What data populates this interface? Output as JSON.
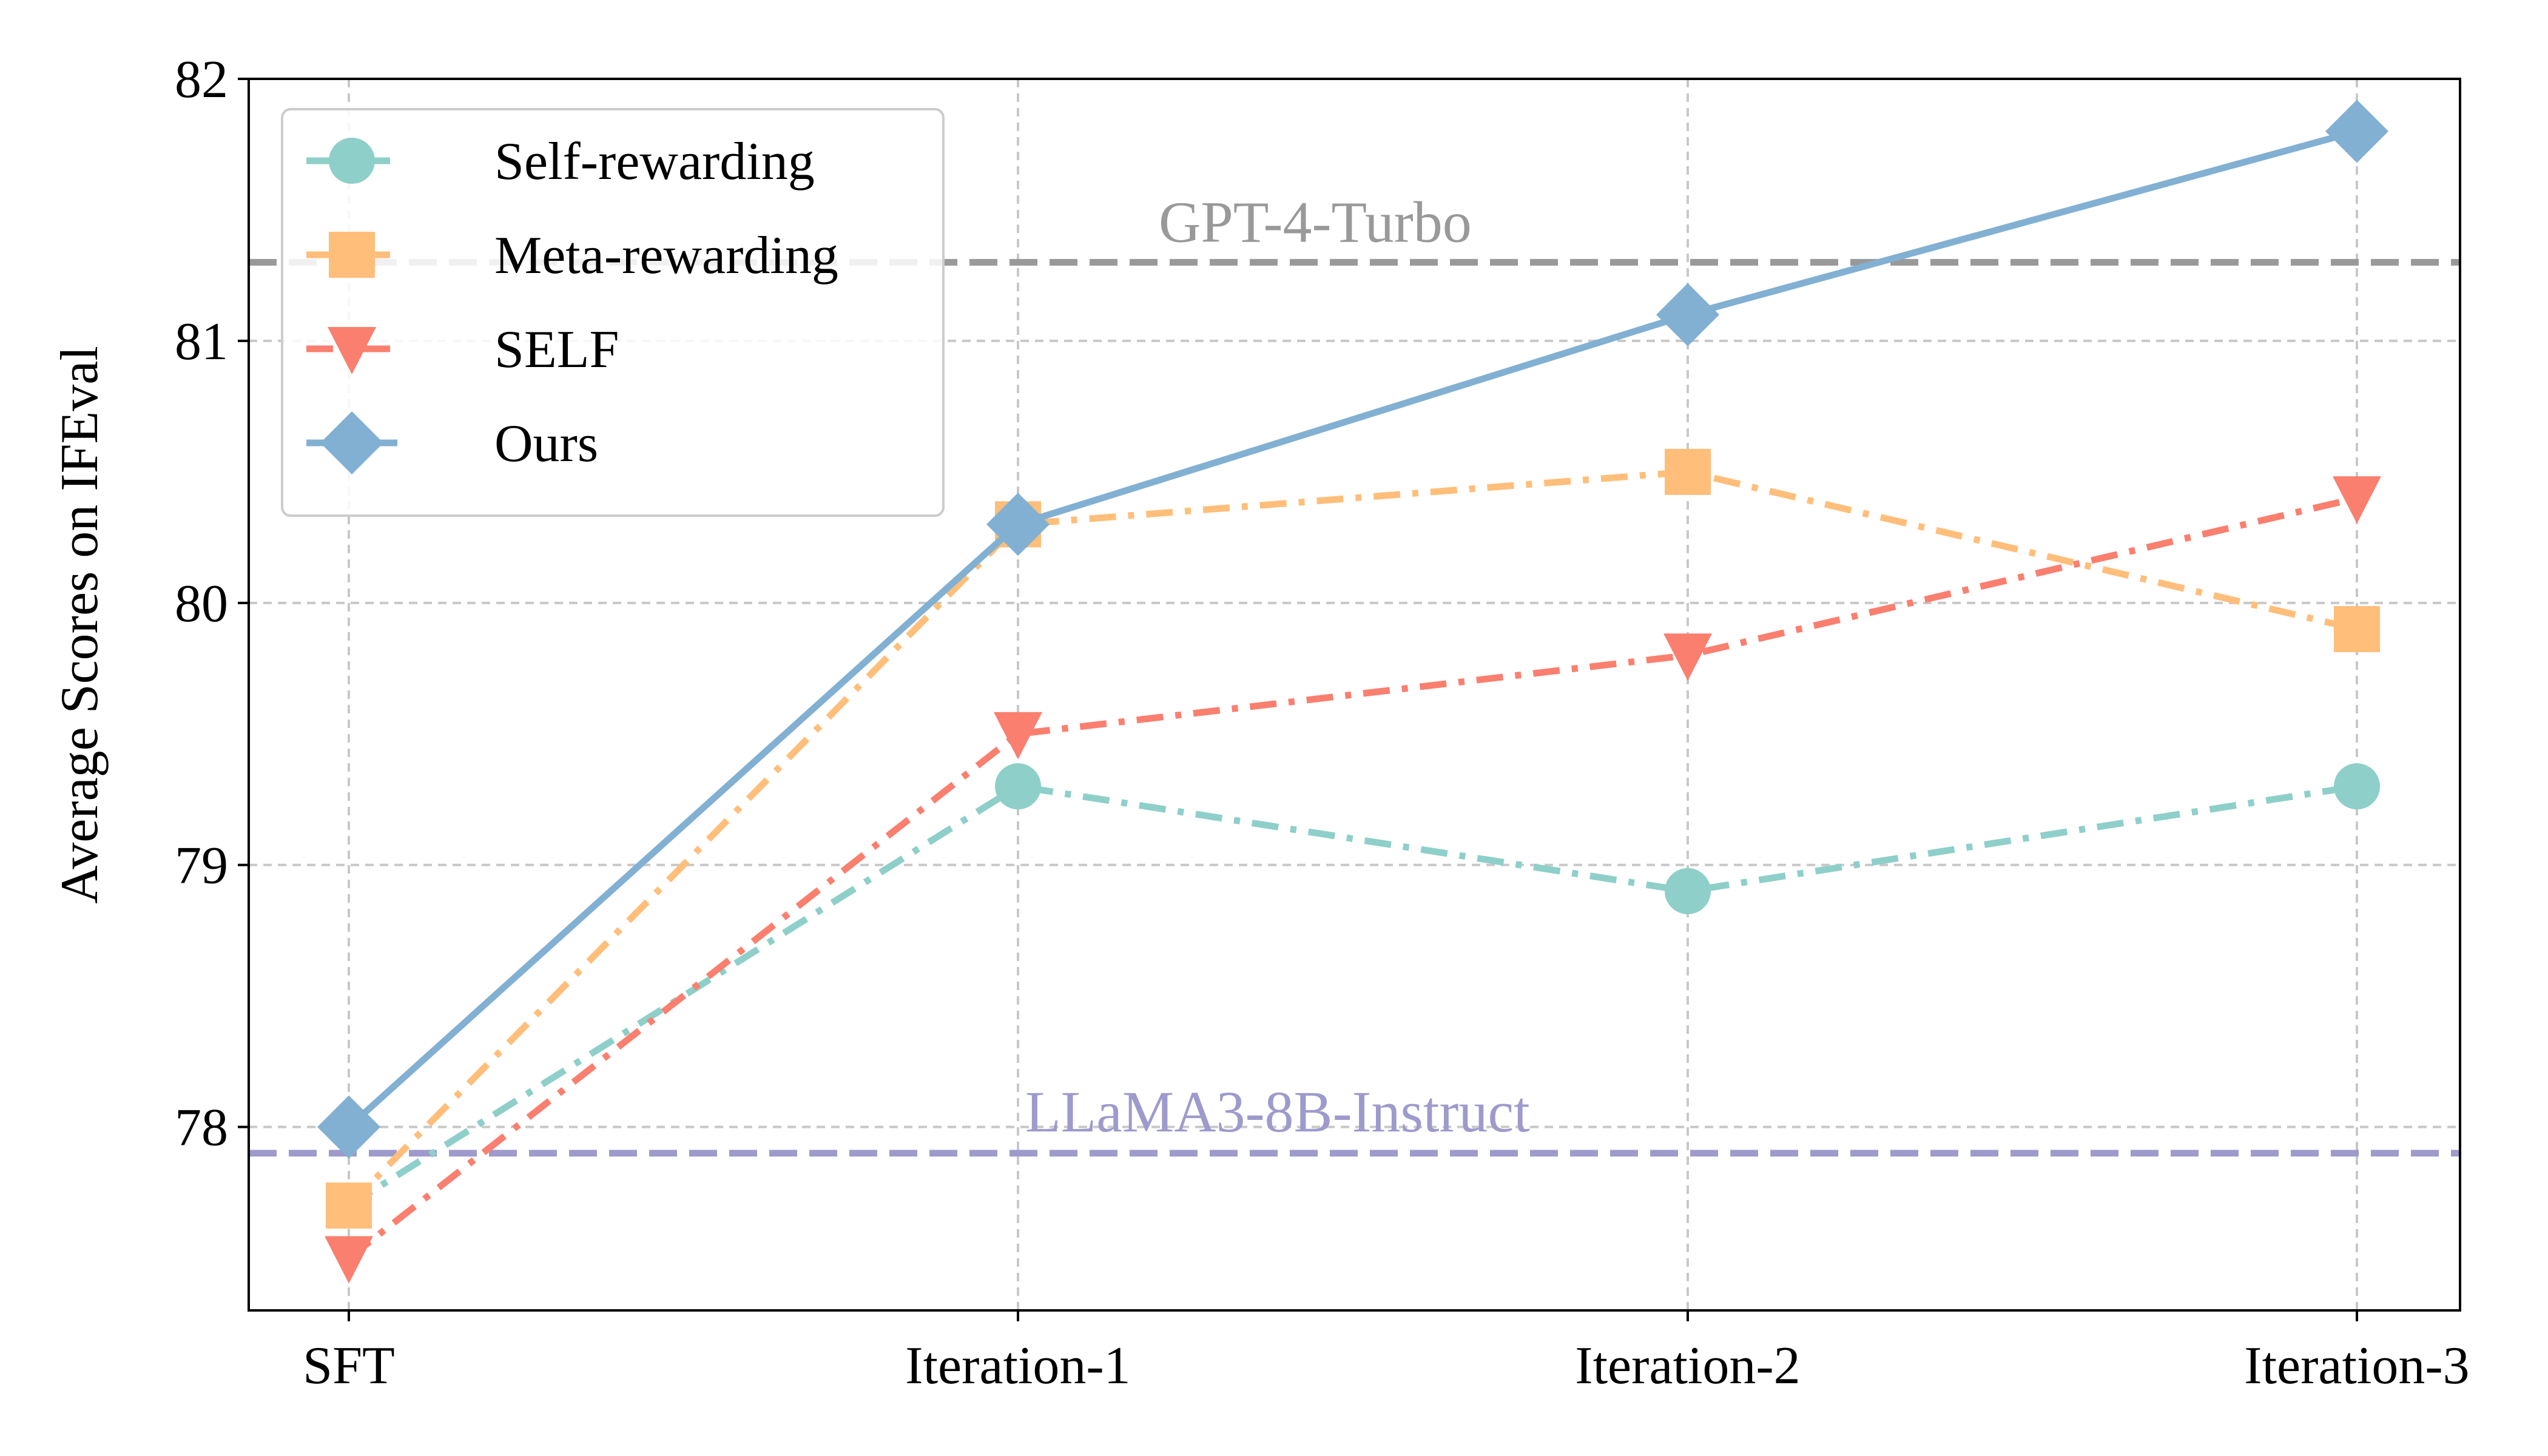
{
  "chart_data": {
    "type": "line",
    "title": "",
    "xlabel": "",
    "ylabel": "Average Scores on IFEval",
    "categories": [
      "SFT",
      "Iteration-1",
      "Iteration-2",
      "Iteration-3"
    ],
    "ylim": [
      77.3,
      82.0
    ],
    "yticks": [
      78,
      79,
      80,
      81,
      82
    ],
    "grid": true,
    "legend_position": "top-left",
    "series": [
      {
        "name": "Self-rewarding",
        "values": [
          77.7,
          79.3,
          78.9,
          79.3
        ],
        "color": "#8ECFC9",
        "marker": "circle",
        "dash": "dashdot"
      },
      {
        "name": "Meta-rewarding",
        "values": [
          77.7,
          80.3,
          80.5,
          79.9
        ],
        "color": "#FFBE7A",
        "marker": "square",
        "dash": "dashdot"
      },
      {
        "name": "SELF",
        "values": [
          77.5,
          79.5,
          79.8,
          80.4
        ],
        "color": "#FA7F6F",
        "marker": "triangle-down",
        "dash": "dashdot"
      },
      {
        "name": "Ours",
        "values": [
          78.0,
          80.3,
          81.1,
          81.8
        ],
        "color": "#82B0D2",
        "marker": "diamond",
        "dash": "solid"
      }
    ],
    "reference_lines": [
      {
        "label": "GPT-4-Turbo",
        "value": 81.3,
        "color": "#999999"
      },
      {
        "label": "LLaMA3-8B-Instruct",
        "value": 77.9,
        "color": "#9E9ACC"
      }
    ]
  }
}
